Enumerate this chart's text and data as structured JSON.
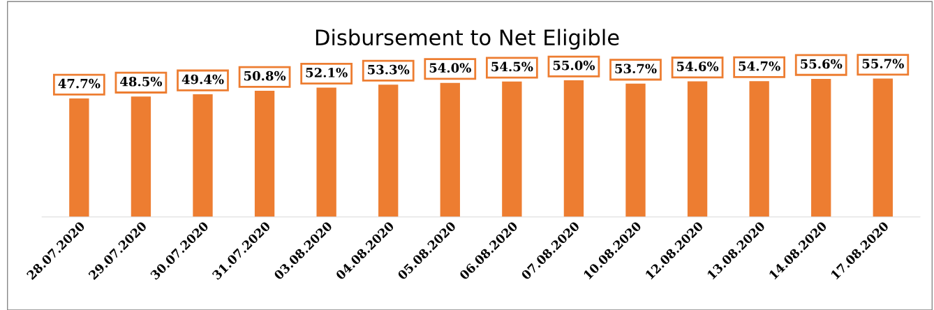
{
  "chart_data": {
    "type": "bar",
    "title": "Disbursement to Net Eligible",
    "categories": [
      "28.07.2020",
      "29.07.2020",
      "30.07.2020",
      "31.07.2020",
      "03.08.2020",
      "04.08.2020",
      "05.08.2020",
      "06.08.2020",
      "07.08.2020",
      "10.08.2020",
      "12.08.2020",
      "13.08.2020",
      "14.08.2020",
      "17.08.2020"
    ],
    "values": [
      47.7,
      48.5,
      49.4,
      50.8,
      52.1,
      53.3,
      54.0,
      54.5,
      55.0,
      53.7,
      54.6,
      54.7,
      55.6,
      55.7
    ],
    "value_labels": [
      "47.7%",
      "48.5%",
      "49.4%",
      "50.8%",
      "52.1%",
      "53.3%",
      "54.0%",
      "54.5%",
      "55.0%",
      "53.7%",
      "54.6%",
      "54.7%",
      "55.6%",
      "55.7%"
    ],
    "color": "#ed7d31",
    "tick_labels": "x",
    "grid": false,
    "legend": false
  }
}
